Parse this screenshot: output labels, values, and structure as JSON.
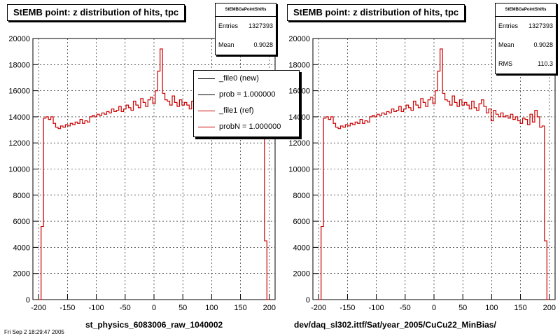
{
  "chart_data": [
    {
      "type": "line",
      "title": "StEMB point: z distribution of hits, tpc",
      "xlabel": "st_physics_6083006_raw_1040002",
      "ylabel": "",
      "xlim": [
        -210,
        210
      ],
      "ylim": [
        0,
        20000
      ],
      "x_ticks": [
        -200,
        -150,
        -100,
        -50,
        0,
        50,
        100,
        150,
        200
      ],
      "y_ticks": [
        0,
        2000,
        4000,
        6000,
        8000,
        10000,
        12000,
        14000,
        16000,
        18000,
        20000
      ],
      "grid": true,
      "stats": {
        "name": "StEMBGaPointShifts",
        "entries_label": "Entries",
        "entries": "1327393",
        "mean_label": "Mean",
        "mean": "0.9028"
      },
      "legend": {
        "placement": "top-right",
        "entries": [
          "_file0 (new)",
          "prob = 1.000000",
          "_file1 (ref)",
          "probN = 1.000000"
        ]
      },
      "series": [
        {
          "name": "_file1 (ref)",
          "color": "#cc0000",
          "bin_edges": [
            -200,
            200
          ],
          "values": [
            0,
            5600,
            13900,
            14000,
            13800,
            14000,
            13500,
            13200,
            13100,
            13300,
            13200,
            13400,
            13300,
            13500,
            13400,
            13600,
            13500,
            13800,
            13500,
            13700,
            13600,
            14000,
            14100,
            14000,
            14200,
            14100,
            14300,
            14200,
            14400,
            14300,
            14600,
            14400,
            14500,
            14800,
            14400,
            14600,
            14900,
            14700,
            14500,
            15200,
            14900,
            14700,
            15400,
            15100,
            14800,
            15300,
            15500,
            15000,
            16000,
            17500,
            19200,
            15800,
            15300,
            15200,
            14900,
            15600,
            15100,
            14800,
            15300,
            14900,
            15100,
            14900,
            14600,
            15200,
            14700,
            14500,
            15000,
            15300,
            14800,
            14300,
            14600,
            13700,
            14500,
            14200,
            14000,
            14300,
            14000,
            14100,
            13900,
            14200,
            13800,
            14000,
            13700,
            13500,
            13900,
            13800,
            13400,
            14200,
            13600,
            14500,
            14000,
            13200,
            13300,
            4500,
            0
          ]
        }
      ]
    },
    {
      "type": "line",
      "title": "StEMB point: z distribution of hits, tpc",
      "xlabel": "dev/daq_sl302.ittf/Sat/year_2005/CuCu22_MinBias/",
      "ylabel": "",
      "xlim": [
        -210,
        210
      ],
      "ylim": [
        0,
        20000
      ],
      "x_ticks": [
        -200,
        -150,
        -100,
        -50,
        0,
        50,
        100,
        150,
        200
      ],
      "y_ticks": [
        0,
        2000,
        4000,
        6000,
        8000,
        10000,
        12000,
        14000,
        16000,
        18000,
        20000
      ],
      "grid": true,
      "stats": {
        "name": "StEMBGaPointShifts",
        "entries_label": "Entries",
        "entries": "1327393",
        "mean_label": "Mean",
        "mean": "0.9028",
        "rms_label": "RMS",
        "rms": "110.3"
      },
      "series": [
        {
          "name": "",
          "color": "#cc0000",
          "bin_edges": [
            -200,
            200
          ],
          "values": [
            0,
            5600,
            13900,
            14000,
            13800,
            14000,
            13500,
            13200,
            13100,
            13300,
            13200,
            13400,
            13300,
            13500,
            13400,
            13600,
            13500,
            13800,
            13500,
            13700,
            13600,
            14000,
            14100,
            14000,
            14200,
            14100,
            14300,
            14200,
            14400,
            14300,
            14600,
            14400,
            14500,
            14800,
            14400,
            14600,
            14900,
            14700,
            14500,
            15200,
            14900,
            14700,
            15400,
            15100,
            14800,
            15300,
            15500,
            15000,
            16000,
            17500,
            19200,
            15800,
            15300,
            15200,
            14900,
            15600,
            15100,
            14800,
            15300,
            14900,
            15100,
            14900,
            14600,
            15200,
            14700,
            14500,
            15000,
            15300,
            14800,
            14300,
            14600,
            13700,
            14500,
            14200,
            14000,
            14300,
            14000,
            14100,
            13900,
            14200,
            13800,
            14000,
            13700,
            13500,
            13900,
            13800,
            13400,
            14200,
            13600,
            14500,
            14000,
            13200,
            13300,
            4500,
            0
          ]
        }
      ]
    }
  ],
  "footer": "Fri Sep 2 18:29:47 2005"
}
